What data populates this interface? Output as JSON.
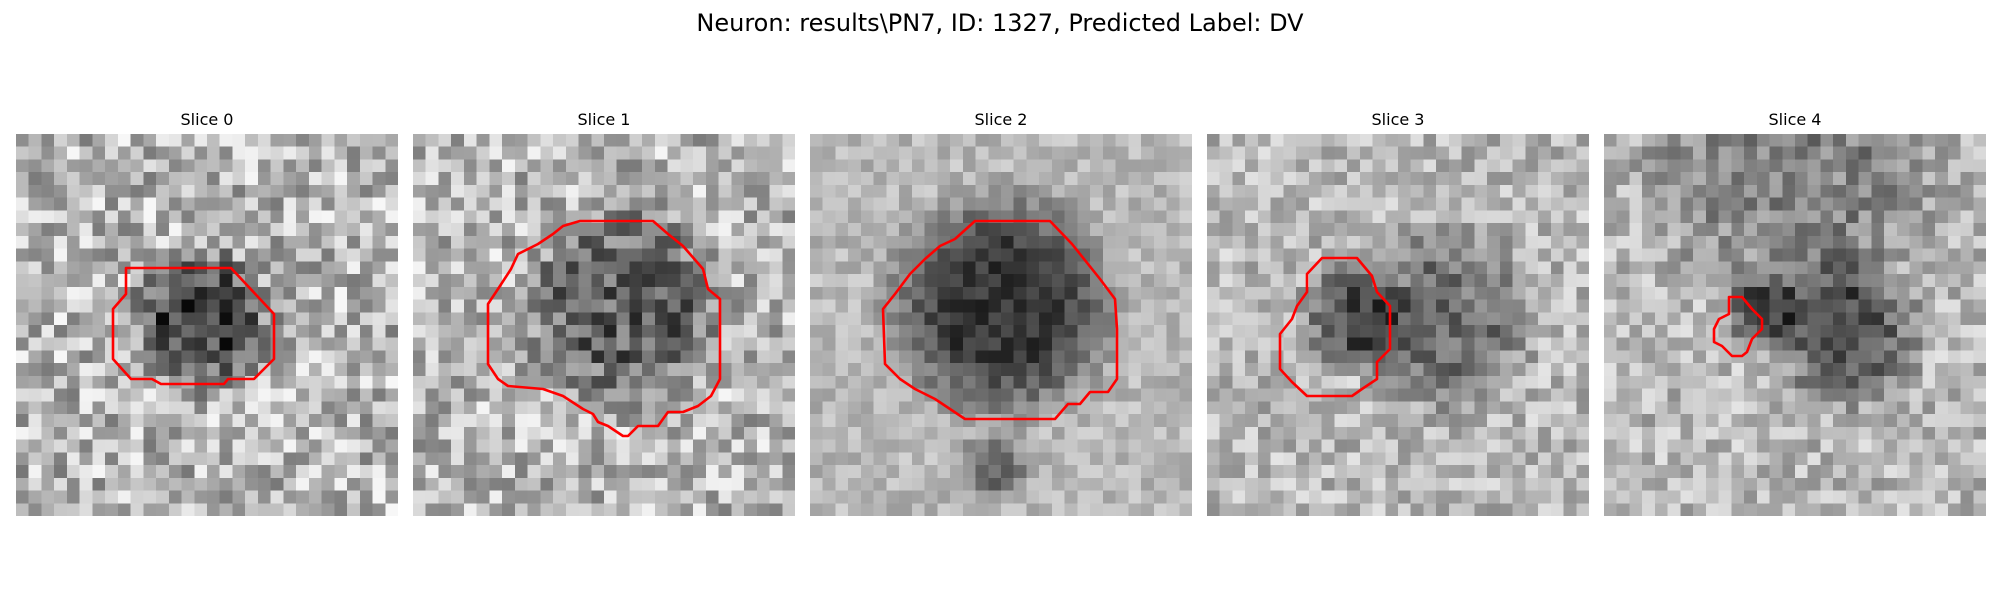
{
  "figure": {
    "title": "Neuron: results\\PN7, ID: 1327, Predicted Label: DV"
  },
  "slices": [
    {
      "title": "Slice 0"
    },
    {
      "title": "Slice 1"
    },
    {
      "title": "Slice 2"
    },
    {
      "title": "Slice 3"
    },
    {
      "title": "Slice 4"
    }
  ],
  "colors": {
    "contour": "#ff0000",
    "background": "#ffffff"
  }
}
